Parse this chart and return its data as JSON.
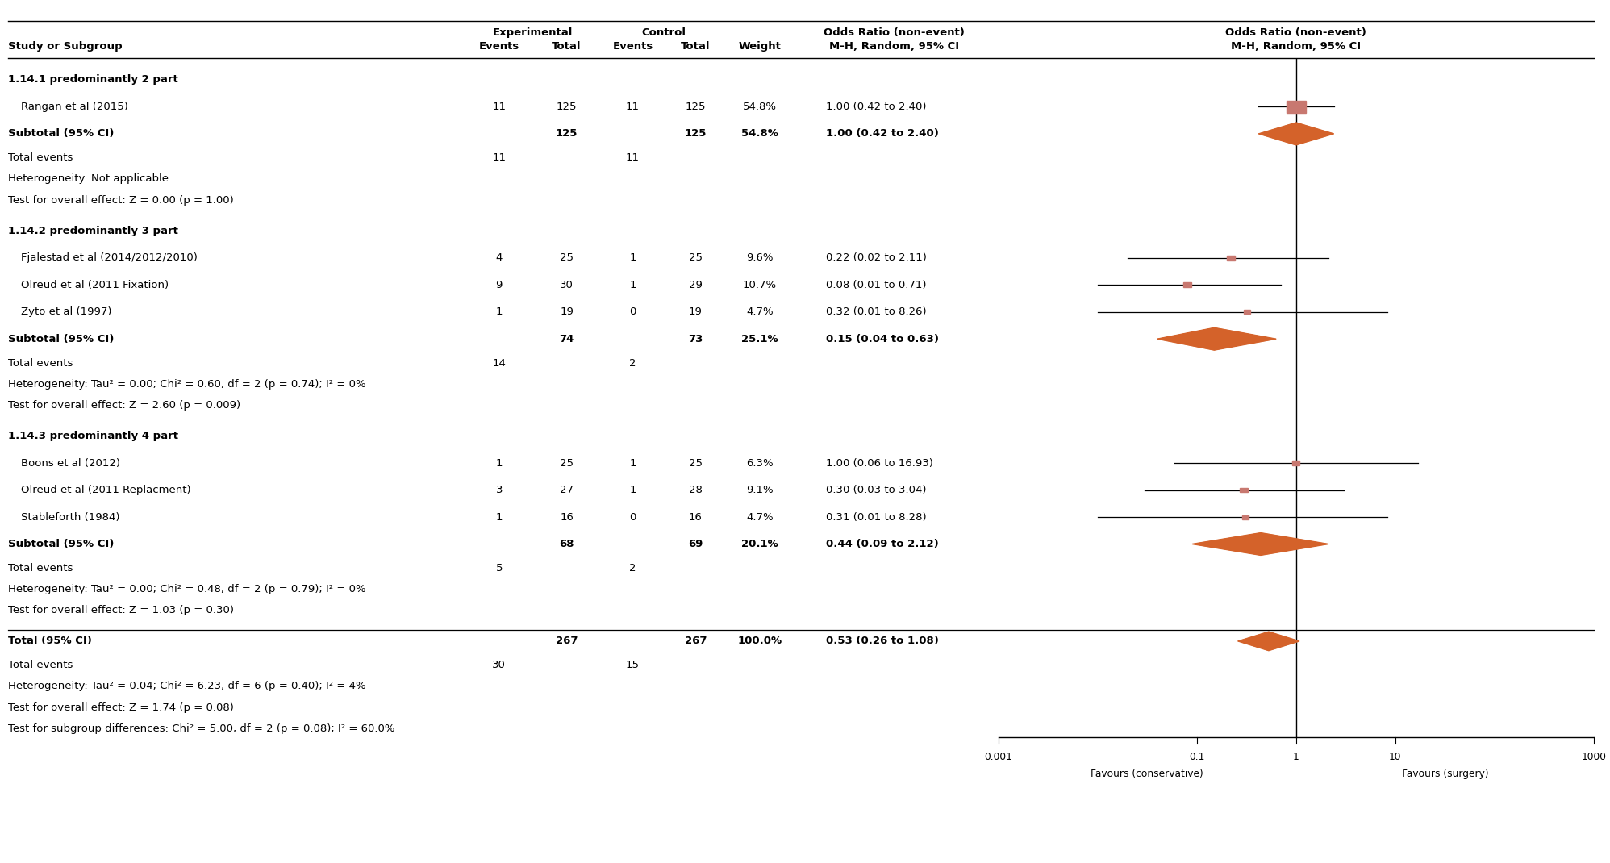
{
  "subgroups": [
    {
      "name": "1.14.1 predominantly 2 part",
      "studies": [
        {
          "label": "Rangan et al (2015)",
          "exp_events": "11",
          "exp_total": "125",
          "ctrl_events": "11",
          "ctrl_total": "125",
          "weight": "54.8%",
          "or_text": "1.00 (0.42 to 2.40)",
          "or": 1.0,
          "ci_low": 0.42,
          "ci_high": 2.4
        }
      ],
      "subtotal": {
        "label": "Subtotal (95% CI)",
        "exp_total": "125",
        "ctrl_total": "125",
        "weight": "54.8%",
        "or_text": "1.00 (0.42 to 2.40)",
        "or": 1.0,
        "ci_low": 0.42,
        "ci_high": 2.4
      },
      "total_events_exp": "11",
      "total_events_ctrl": "11",
      "heterogeneity": "Heterogeneity: Not applicable",
      "test_overall": "Test for overall effect: Z = 0.00 (p = 1.00)"
    },
    {
      "name": "1.14.2 predominantly 3 part",
      "studies": [
        {
          "label": "Fjalestad et al (2014/2012/2010)",
          "exp_events": "4",
          "exp_total": "25",
          "ctrl_events": "1",
          "ctrl_total": "25",
          "weight": "9.6%",
          "or_text": "0.22 (0.02 to 2.11)",
          "or": 0.22,
          "ci_low": 0.02,
          "ci_high": 2.11
        },
        {
          "label": "Olreud et al (2011 Fixation)",
          "exp_events": "9",
          "exp_total": "30",
          "ctrl_events": "1",
          "ctrl_total": "29",
          "weight": "10.7%",
          "or_text": "0.08 (0.01 to 0.71)",
          "or": 0.08,
          "ci_low": 0.01,
          "ci_high": 0.71
        },
        {
          "label": "Zyto et al (1997)",
          "exp_events": "1",
          "exp_total": "19",
          "ctrl_events": "0",
          "ctrl_total": "19",
          "weight": "4.7%",
          "or_text": "0.32 (0.01 to 8.26)",
          "or": 0.32,
          "ci_low": 0.01,
          "ci_high": 8.26
        }
      ],
      "subtotal": {
        "label": "Subtotal (95% CI)",
        "exp_total": "74",
        "ctrl_total": "73",
        "weight": "25.1%",
        "or_text": "0.15 (0.04 to 0.63)",
        "or": 0.15,
        "ci_low": 0.04,
        "ci_high": 0.63
      },
      "total_events_exp": "14",
      "total_events_ctrl": "2",
      "heterogeneity": "Heterogeneity: Tau² = 0.00; Chi² = 0.60, df = 2 (p = 0.74); I² = 0%",
      "test_overall": "Test for overall effect: Z = 2.60 (p = 0.009)"
    },
    {
      "name": "1.14.3 predominantly 4 part",
      "studies": [
        {
          "label": "Boons et al (2012)",
          "exp_events": "1",
          "exp_total": "25",
          "ctrl_events": "1",
          "ctrl_total": "25",
          "weight": "6.3%",
          "or_text": "1.00 (0.06 to 16.93)",
          "or": 1.0,
          "ci_low": 0.06,
          "ci_high": 16.93
        },
        {
          "label": "Olreud et al (2011 Replacment)",
          "exp_events": "3",
          "exp_total": "27",
          "ctrl_events": "1",
          "ctrl_total": "28",
          "weight": "9.1%",
          "or_text": "0.30 (0.03 to 3.04)",
          "or": 0.3,
          "ci_low": 0.03,
          "ci_high": 3.04
        },
        {
          "label": "Stableforth (1984)",
          "exp_events": "1",
          "exp_total": "16",
          "ctrl_events": "0",
          "ctrl_total": "16",
          "weight": "4.7%",
          "or_text": "0.31 (0.01 to 8.28)",
          "or": 0.31,
          "ci_low": 0.01,
          "ci_high": 8.28
        }
      ],
      "subtotal": {
        "label": "Subtotal (95% CI)",
        "exp_total": "68",
        "ctrl_total": "69",
        "weight": "20.1%",
        "or_text": "0.44 (0.09 to 2.12)",
        "or": 0.44,
        "ci_low": 0.09,
        "ci_high": 2.12
      },
      "total_events_exp": "5",
      "total_events_ctrl": "2",
      "heterogeneity": "Heterogeneity: Tau² = 0.00; Chi² = 0.48, df = 2 (p = 0.79); I² = 0%",
      "test_overall": "Test for overall effect: Z = 1.03 (p = 0.30)"
    }
  ],
  "overall": {
    "label": "Total (95% CI)",
    "exp_total": "267",
    "ctrl_total": "267",
    "weight": "100.0%",
    "or_text": "0.53 (0.26 to 1.08)",
    "or": 0.53,
    "ci_low": 0.26,
    "ci_high": 1.08
  },
  "overall_total_events_exp": "30",
  "overall_total_events_ctrl": "15",
  "overall_heterogeneity": "Heterogeneity: Tau² = 0.04; Chi² = 6.23, df = 6 (p = 0.40); I² = 4%",
  "overall_test": "Test for overall effect: Z = 1.74 (p = 0.08)",
  "overall_subgroup": "Test for subgroup differences: Chi² = 5.00, df = 2 (p = 0.08); I² = 60.0%",
  "x_ticks": [
    0.001,
    0.1,
    1,
    10,
    1000
  ],
  "x_tick_labels": [
    "0.001",
    "0.1",
    "1",
    "10",
    "1000"
  ],
  "favours_left": "Favours (conservative)",
  "favours_right": "Favours (surgery)",
  "orange_color": "#D4622A",
  "square_color": "#C87870",
  "black": "#000000",
  "bg_color": "#FFFFFF",
  "log_min": -3,
  "log_max": 3
}
